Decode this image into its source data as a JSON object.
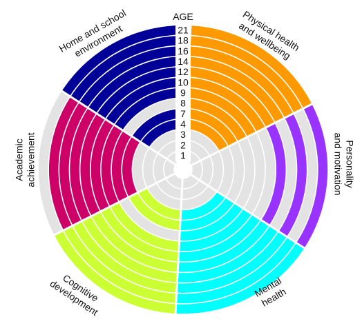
{
  "age_header": "AGE",
  "ages": [
    "1",
    "2",
    "3",
    "4",
    "7",
    "8",
    "9",
    "10",
    "12",
    "14",
    "16",
    "18",
    "21"
  ],
  "domains": [
    {
      "name": "Physical health and wellbeing",
      "label_lines": [
        "Physical health",
        "and wellbeing"
      ],
      "color": "#FF9900",
      "waves": [
        0,
        0,
        0,
        1,
        1,
        1,
        1,
        1,
        1,
        1,
        1,
        1,
        1
      ]
    },
    {
      "name": "Personality and motivation",
      "label_lines": [
        "Personality",
        "and motivation"
      ],
      "color": "#9933FF",
      "waves": [
        0,
        0,
        0,
        0,
        0,
        0,
        0,
        0,
        1,
        0,
        1,
        0,
        1
      ]
    },
    {
      "name": "Mental health",
      "label_lines": [
        "Mental",
        "health"
      ],
      "color": "#00FFFF",
      "waves": [
        0,
        0,
        0,
        1,
        1,
        1,
        1,
        1,
        1,
        1,
        1,
        1,
        1
      ]
    },
    {
      "name": "Cognitive development",
      "label_lines": [
        "Cognitive",
        "development"
      ],
      "color": "#CCFF33",
      "waves": [
        0,
        0,
        0,
        1,
        1,
        0,
        1,
        1,
        1,
        1,
        1,
        1,
        1
      ]
    },
    {
      "name": "Academic achievement",
      "label_lines": [
        "Academic",
        "achievement"
      ],
      "color": "#CC0066",
      "waves": [
        0,
        0,
        0,
        0,
        1,
        1,
        1,
        1,
        1,
        1,
        1,
        1,
        0
      ]
    },
    {
      "name": "Home and school environment",
      "label_lines": [
        "Home and school",
        "environment"
      ],
      "color": "#000099",
      "waves": [
        0,
        0,
        0,
        1,
        1,
        0,
        1,
        1,
        1,
        1,
        1,
        1,
        1
      ]
    }
  ],
  "empty_color": "#E3E3E3"
}
